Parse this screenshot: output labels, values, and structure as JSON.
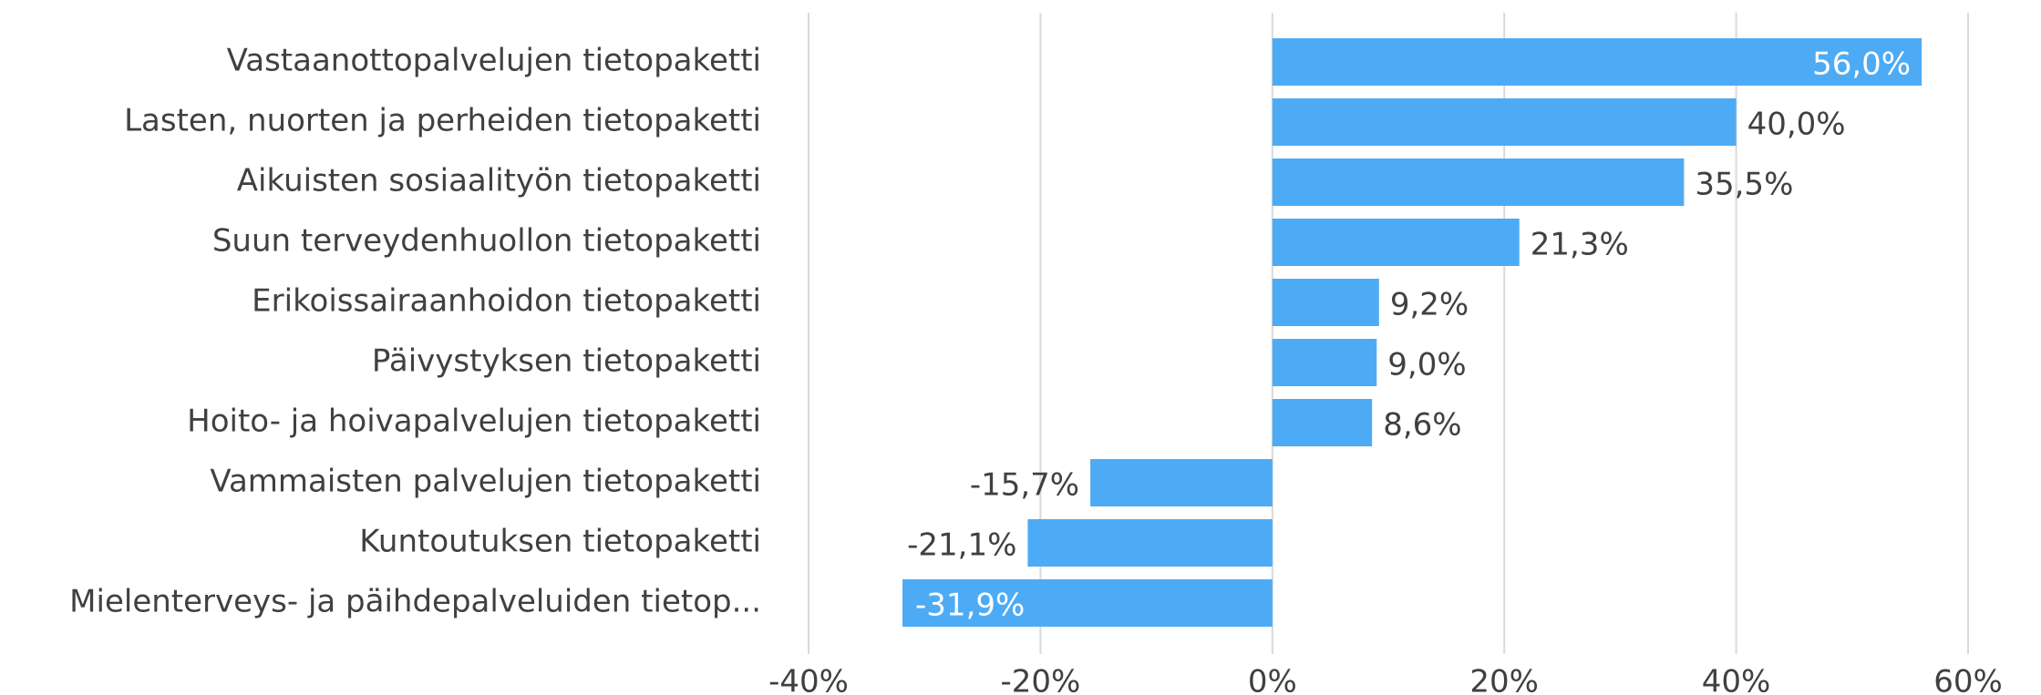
{
  "chart_data": {
    "type": "bar",
    "orientation": "horizontal",
    "categories": [
      "Vastaanottopalvelujen tietopaketti",
      "Lasten, nuorten ja perheiden tietopaketti",
      "Aikuisten sosiaalityön tietopaketti",
      "Suun terveydenhuollon tietopaketti",
      "Erikoissairaanhoidon tietopaketti",
      "Päivystyksen tietopaketti",
      "Hoito- ja hoivapalvelujen tietopaketti",
      "Vammaisten palvelujen tietopaketti",
      "Kuntoutuksen tietopaketti",
      "Mielenterveys- ja päihdepalveluiden tietop..."
    ],
    "values": [
      56.0,
      40.0,
      35.5,
      21.3,
      9.2,
      9.0,
      8.6,
      -15.7,
      -21.1,
      -31.9
    ],
    "data_labels": [
      "56,0%",
      "40,0%",
      "35,5%",
      "21,3%",
      "9,2%",
      "9,0%",
      "8,6%",
      "-15,7%",
      "-21,1%",
      "-31,9%"
    ],
    "xlim": [
      -40,
      60
    ],
    "ticks": [
      -40,
      -20,
      0,
      20,
      40,
      60
    ],
    "tick_labels": [
      "-40%",
      "-20%",
      "0%",
      "20%",
      "40%",
      "60%"
    ],
    "title": "",
    "xlabel": "",
    "ylabel": "",
    "grid": true,
    "legend": "none",
    "colors": {
      "bar": "#4dabf5",
      "grid": "#d9d9d9",
      "text": "#404040",
      "label_inside": "#ffffff"
    }
  }
}
